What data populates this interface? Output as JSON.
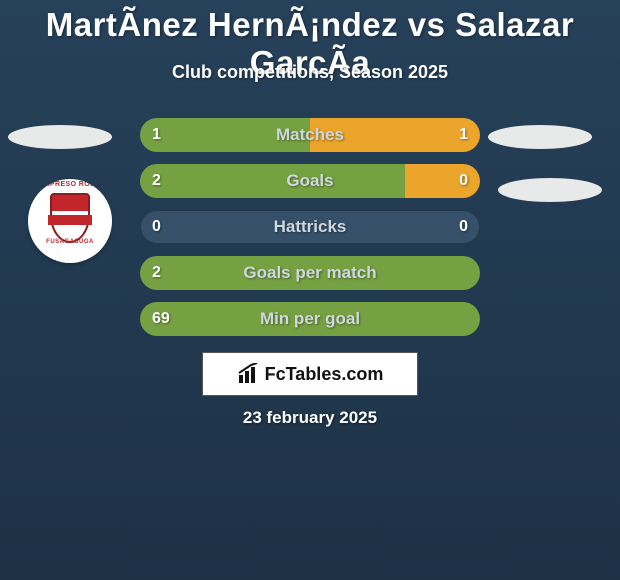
{
  "infographic": {
    "title": "MartÃ­nez HernÃ¡ndez vs Salazar GarcÃ­a",
    "subtitle": "Club competitions, Season 2025",
    "date": "23 february 2025",
    "brand_box_text": "FcTables.com",
    "background_gradient": {
      "from": "#26415a",
      "to": "#1d3145"
    },
    "title_color": "#ffffff",
    "subtitle_color": "#ffffff",
    "date_color": "#ffffff",
    "bar_color_player1": "#76a142",
    "bar_color_player2": "#eaa52a",
    "bar_track_color": "#355068",
    "bar_label_color": "#cfd8df",
    "bar_value_color": "#ffffff",
    "brand_box_bg": "#ffffff",
    "ellipse_left_color": "#e8eaea",
    "ellipse_right1_color": "#e8eaea",
    "ellipse_right2_color": "#e8eaea",
    "logo": {
      "top_text": "EXPRESO ROJO",
      "bottom_text": "FUSAGASUGA"
    },
    "rows": [
      {
        "label": "Matches",
        "left_val": "1",
        "right_val": "1",
        "left_pct": 50,
        "right_pct": 50
      },
      {
        "label": "Goals",
        "left_val": "2",
        "right_val": "0",
        "left_pct": 78,
        "right_pct": 22
      },
      {
        "label": "Hattricks",
        "left_val": "0",
        "right_val": "0",
        "left_pct": 0,
        "right_pct": 0
      },
      {
        "label": "Goals per match",
        "left_val": "2",
        "right_val": "",
        "left_pct": 100,
        "right_pct": 0
      },
      {
        "label": "Min per goal",
        "left_val": "69",
        "right_val": "",
        "left_pct": 100,
        "right_pct": 0
      }
    ]
  }
}
